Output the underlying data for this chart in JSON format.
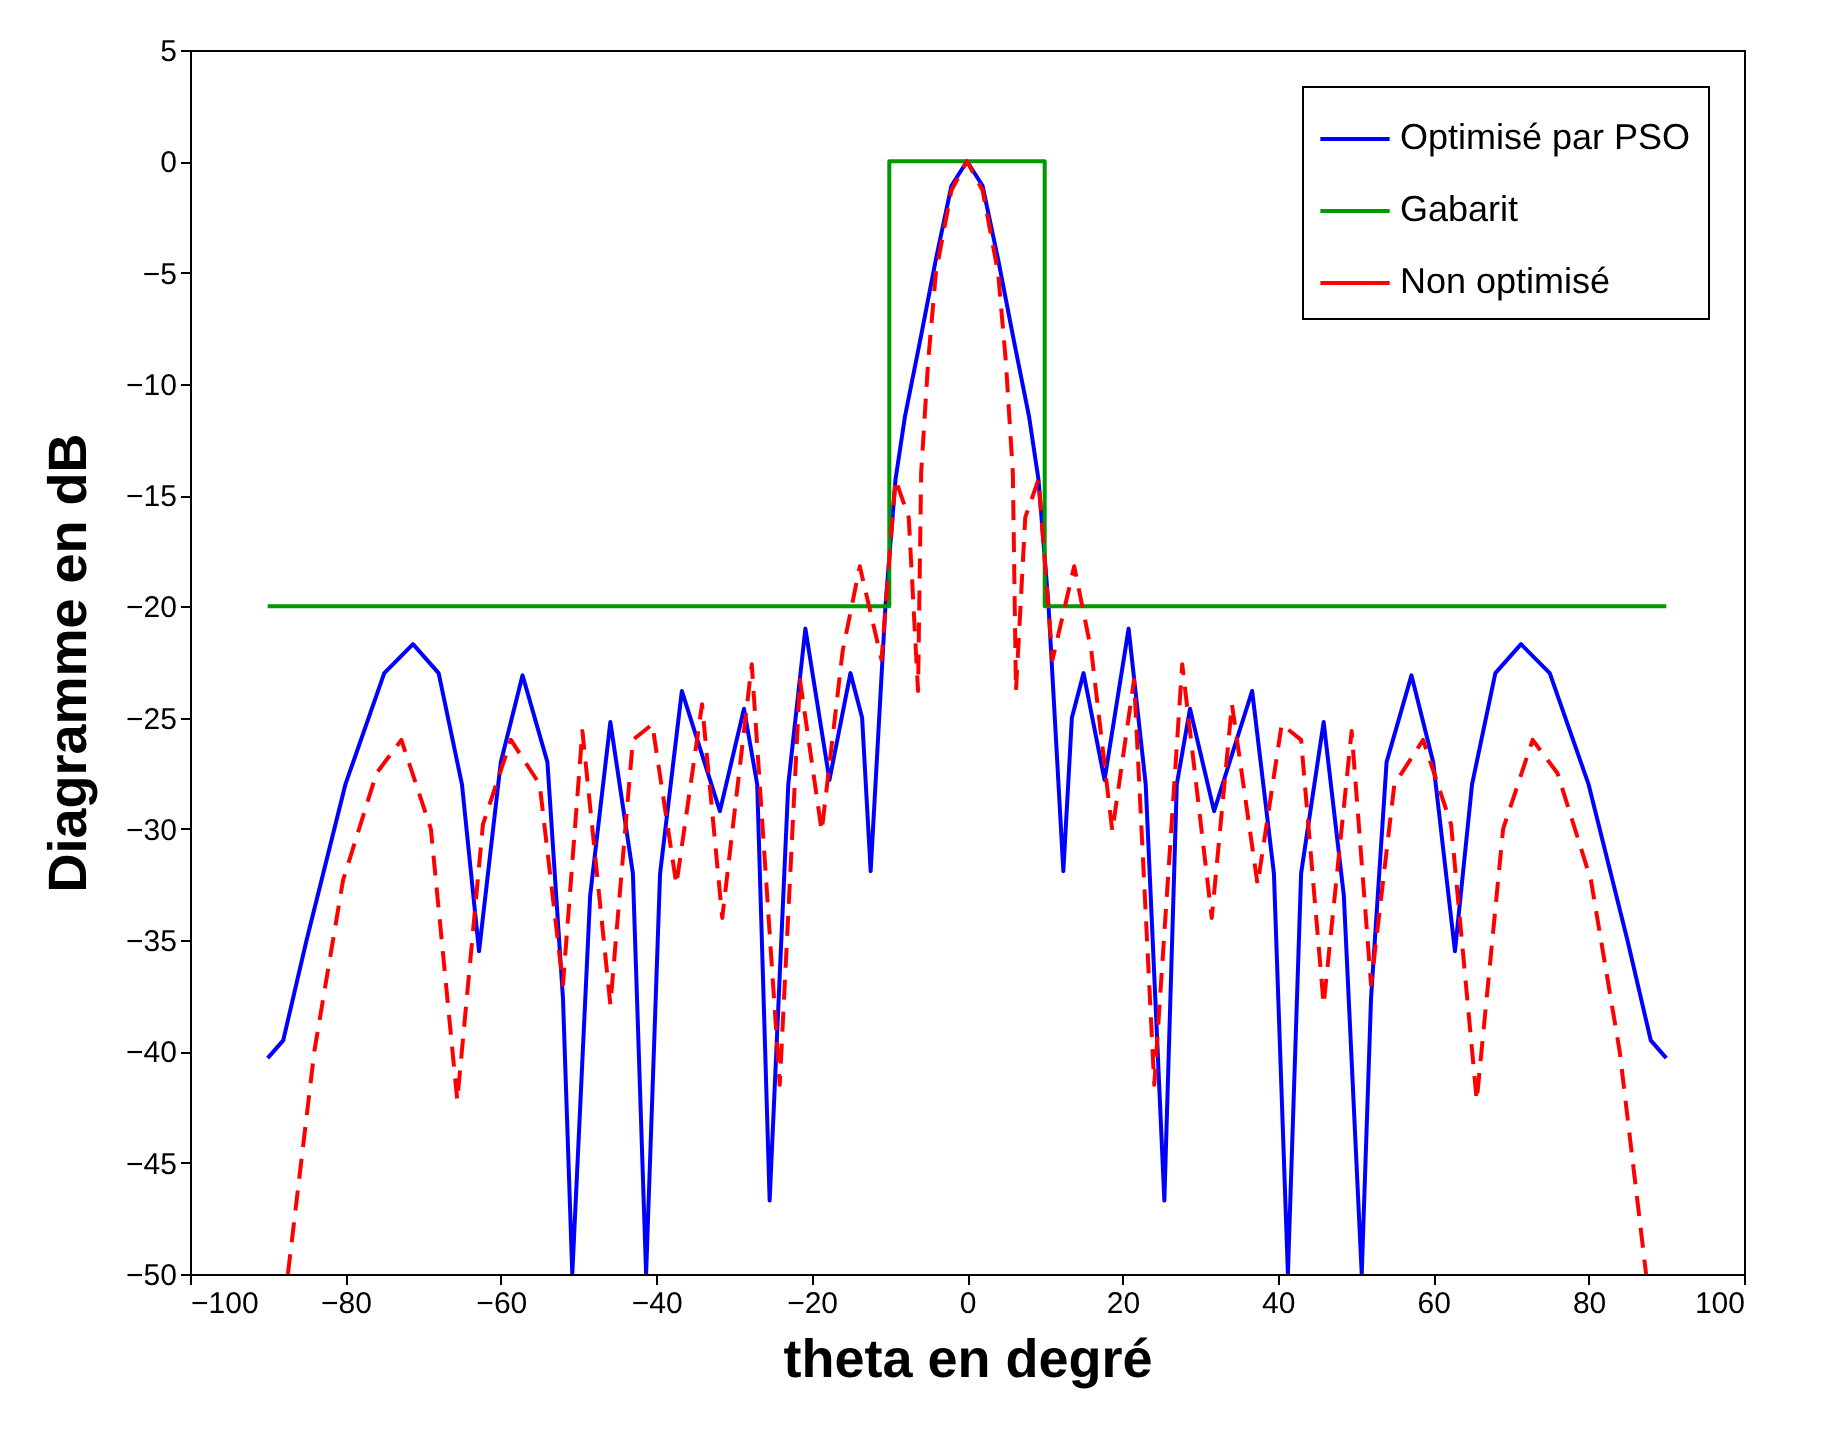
{
  "chart_data": {
    "type": "line",
    "xlabel": "theta en degré",
    "ylabel": "Diagramme en dB",
    "xlim": [
      -100,
      100
    ],
    "xticks": [
      -100,
      -80,
      -60,
      -40,
      -20,
      0,
      20,
      40,
      60,
      80,
      100
    ],
    "ylim": [
      -50,
      5
    ],
    "yticks": [
      -50,
      -45,
      -40,
      -35,
      -30,
      -25,
      -20,
      -15,
      -10,
      -5,
      0,
      5
    ],
    "grid": false,
    "legend": "top right",
    "series": [
      {
        "name": "Optimisé par PSO",
        "color": "#0000ff",
        "line_style": "solid",
        "x": [
          -90,
          -88,
          -85,
          -80,
          -75,
          -71.3,
          -68,
          -65,
          -62.8,
          -60,
          -57.2,
          -54,
          -52,
          -50.8,
          -48.5,
          -45.9,
          -43,
          -41.3,
          -39.5,
          -36.7,
          -31.8,
          -28.7,
          -27,
          -25.4,
          -23,
          -20.8,
          -17.7,
          -15,
          -13.5,
          -12.4,
          -10.5,
          -9.2,
          -8,
          -6,
          -4,
          -2,
          0,
          2,
          4,
          6,
          8,
          9.2,
          10.5,
          12.4,
          13.5,
          15,
          17.7,
          20.8,
          23,
          25.4,
          27,
          28.7,
          31.8,
          36.7,
          39.5,
          41.3,
          43,
          45.9,
          48.5,
          50.8,
          52,
          54,
          57.2,
          60,
          62.8,
          65,
          68,
          71.3,
          75,
          80,
          85,
          88,
          90
        ],
        "values": [
          -40.3,
          -39.5,
          -35,
          -28,
          -23,
          -21.7,
          -23,
          -28,
          -35.5,
          -27,
          -23.1,
          -27,
          -37.6,
          -50,
          -33,
          -25.2,
          -32,
          -50,
          -32,
          -23.8,
          -29.2,
          -24.6,
          -28,
          -46.7,
          -28,
          -21,
          -27.8,
          -23,
          -25,
          -31.9,
          -20,
          -14.3,
          -11.5,
          -8,
          -4.4,
          -1.1,
          0,
          -1.1,
          -4.4,
          -8,
          -11.5,
          -14.3,
          -20,
          -31.9,
          -25,
          -23,
          -27.8,
          -21,
          -28,
          -46.7,
          -28,
          -24.6,
          -29.2,
          -23.8,
          -32,
          -50,
          -32,
          -25.2,
          -33,
          -50,
          -37.6,
          -27,
          -23.1,
          -27,
          -35.5,
          -28,
          -23,
          -21.7,
          -23,
          -28,
          -35,
          -39.5,
          -40.3
        ]
      },
      {
        "name": "Gabarit",
        "color": "#009900",
        "line_style": "solid",
        "x": [
          -90,
          -10,
          -10,
          10,
          10,
          90
        ],
        "values": [
          -20,
          -20,
          0,
          0,
          -20,
          -20
        ]
      },
      {
        "name": "Non optimisé",
        "color": "#ff0000",
        "line_style": "dashed",
        "x": [
          -87.4,
          -84,
          -80.3,
          -76,
          -72.8,
          -69,
          -65.6,
          -62.3,
          -58.7,
          -55,
          -52,
          -49.5,
          -45.9,
          -43,
          -40.5,
          -37.4,
          -34.1,
          -31.5,
          -27.7,
          -24.1,
          -21.5,
          -18.7,
          -16,
          -13.8,
          -11,
          -9.2,
          -7.5,
          -6.3,
          -5.9,
          -5,
          -4,
          -2,
          0,
          2,
          4,
          5,
          5.9,
          6.3,
          7.5,
          9.2,
          11,
          13.8,
          16,
          18.7,
          21.5,
          24.1,
          27.7,
          31.5,
          34.1,
          37.4,
          40.5,
          43,
          45.9,
          49.5,
          52,
          55,
          58.7,
          62.3,
          65.6,
          69,
          72.8,
          76,
          80.3,
          84,
          87.4
        ],
        "values": [
          -50,
          -40,
          -32.3,
          -27.5,
          -26,
          -30,
          -42.2,
          -29.8,
          -26,
          -28,
          -37,
          -25.6,
          -37.9,
          -26,
          -25.3,
          -32.5,
          -24.4,
          -34,
          -22.6,
          -41.5,
          -23.3,
          -30.1,
          -22,
          -18.2,
          -22.4,
          -14.3,
          -16,
          -23.8,
          -14,
          -9,
          -5,
          -1.3,
          0,
          -1.3,
          -5,
          -9,
          -14,
          -23.8,
          -16,
          -14.3,
          -22.4,
          -18.2,
          -22,
          -30.1,
          -23.3,
          -41.5,
          -22.6,
          -34,
          -24.4,
          -32.5,
          -25.3,
          -26,
          -37.9,
          -25.6,
          -37,
          -28,
          -26,
          -29.8,
          -42.2,
          -30,
          -26,
          -27.5,
          -32.3,
          -40,
          -50
        ]
      }
    ]
  }
}
